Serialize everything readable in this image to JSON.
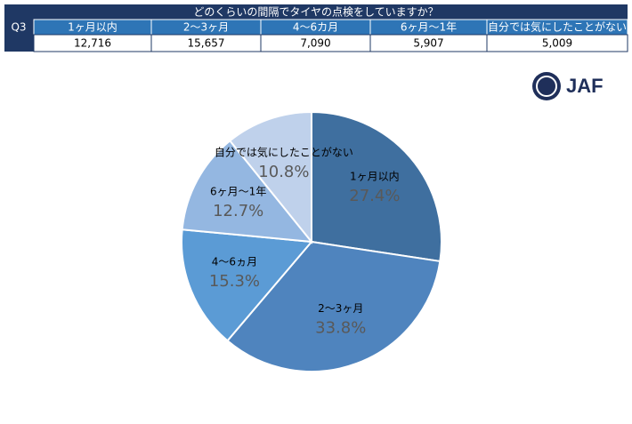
{
  "table": {
    "title": "どのくらいの間隔でタイヤの点検をしていますか？",
    "label": "Q3",
    "headers": [
      "1ヶ月以内",
      "2～3ヶ月",
      "4～6カ月",
      "6ヶ月～1年",
      "自分では気にしたことがない"
    ],
    "rows": [
      [
        "12,716",
        "15,657",
        "7,090",
        "5,907",
        "5,009"
      ]
    ]
  },
  "logo": {
    "text": "JAF"
  },
  "chart_data": {
    "type": "pie",
    "categories": [
      "1ヶ月以内",
      "2～3ヶ月",
      "4～6ヵ月",
      "6ヶ月～1年",
      "自分では気にしたことがない"
    ],
    "values": [
      27.4,
      33.8,
      15.3,
      12.7,
      10.8
    ],
    "value_labels": [
      "27.4%",
      "33.8%",
      "15.3%",
      "12.7%",
      "10.8%"
    ],
    "colors": [
      "#3f6f9f",
      "#4f84be",
      "#5b9bd5",
      "#94b7e1",
      "#bfd1eb"
    ]
  }
}
